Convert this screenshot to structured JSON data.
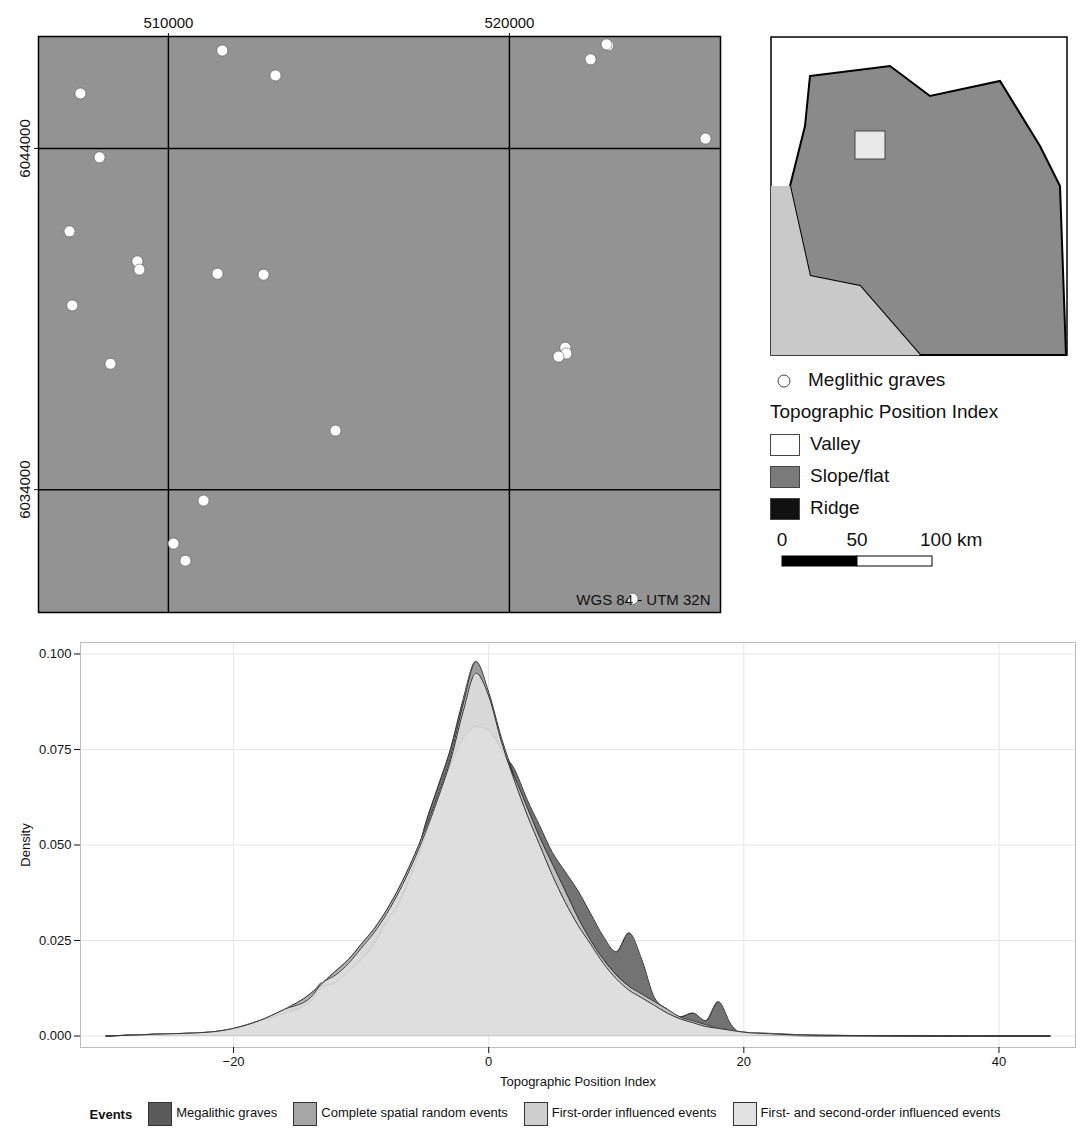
{
  "chart_data": [
    {
      "type": "scatter",
      "x": [
        511580,
        513140,
        507420,
        507980,
        507100,
        509090,
        509150,
        511440,
        512790,
        507180,
        508300,
        514900,
        511030,
        510150,
        510500,
        522900,
        522380,
        522850,
        525750,
        521640,
        521670,
        521440,
        523610
      ],
      "y": [
        6046870,
        6046140,
        6045610,
        6043740,
        6041570,
        6040690,
        6040450,
        6040330,
        6040300,
        6039400,
        6037690,
        6035730,
        6033680,
        6032420,
        6031920,
        6047020,
        6046610,
        6047050,
        6044290,
        6038160,
        6037990,
        6037900,
        6030800
      ],
      "xlim": [
        506190,
        526190
      ],
      "ylim": [
        6030400,
        6047280
      ],
      "xticks": [
        510000,
        520000
      ],
      "yticks": [
        6034000,
        6044000
      ],
      "grid": true,
      "color": "#ffffff",
      "marker": "circle",
      "annotations": [
        "WGS 84 - UTM 32N"
      ]
    },
    {
      "type": "area",
      "x_label": "Topographic Position Index",
      "y_label": "Density",
      "x": [
        -30,
        -26,
        -22,
        -20,
        -18,
        -16,
        -14,
        -13,
        -12,
        -11,
        -10,
        -9,
        -8,
        -7,
        -6,
        -5,
        -4,
        -3,
        -2,
        -1,
        0,
        1,
        2,
        3,
        4,
        5,
        6,
        7,
        8,
        9,
        10,
        11,
        12,
        13,
        14,
        15,
        16,
        17,
        18,
        19,
        20,
        22,
        24,
        26,
        30,
        36,
        44
      ],
      "series": [
        {
          "name": "Megalithic graves",
          "color": "#5a5a5a",
          "values": [
            0,
            0.0005,
            0.0008,
            0.0015,
            0.003,
            0.006,
            0.01,
            0.014,
            0.013,
            0.016,
            0.02,
            0.025,
            0.03,
            0.029,
            0.042,
            0.055,
            0.065,
            0.075,
            0.088,
            0.098,
            0.087,
            0.075,
            0.07,
            0.062,
            0.055,
            0.048,
            0.043,
            0.038,
            0.032,
            0.026,
            0.022,
            0.027,
            0.02,
            0.01,
            0.007,
            0.005,
            0.006,
            0.004,
            0.009,
            0.003,
            0.0005,
            0.0002,
            0.0001,
            0,
            0,
            0,
            0
          ]
        },
        {
          "name": "Complete spatial random events",
          "color": "#a6a6a6",
          "values": [
            0,
            0.0005,
            0.001,
            0.002,
            0.004,
            0.007,
            0.011,
            0.014,
            0.017,
            0.02,
            0.024,
            0.028,
            0.033,
            0.039,
            0.046,
            0.054,
            0.063,
            0.073,
            0.087,
            0.098,
            0.09,
            0.078,
            0.068,
            0.058,
            0.05,
            0.042,
            0.035,
            0.029,
            0.024,
            0.02,
            0.016,
            0.013,
            0.01,
            0.008,
            0.006,
            0.0045,
            0.0035,
            0.0025,
            0.002,
            0.0015,
            0.001,
            0.0006,
            0.0003,
            0.0002,
            0.0001,
            0,
            0
          ]
        },
        {
          "name": "First-order influenced events",
          "color": "#cfcfcf",
          "values": [
            0,
            0.0005,
            0.001,
            0.002,
            0.004,
            0.006,
            0.009,
            0.013,
            0.014,
            0.017,
            0.02,
            0.024,
            0.03,
            0.035,
            0.043,
            0.052,
            0.062,
            0.071,
            0.078,
            0.081,
            0.08,
            0.075,
            0.068,
            0.06,
            0.052,
            0.045,
            0.038,
            0.031,
            0.025,
            0.02,
            0.016,
            0.013,
            0.011,
            0.009,
            0.007,
            0.005,
            0.004,
            0.003,
            0.002,
            0.0015,
            0.001,
            0.0007,
            0.0004,
            0.0002,
            0.0001,
            5e-05,
            0
          ]
        },
        {
          "name": "First- and second-order influenced events",
          "color": "#e2e2e2",
          "values": [
            0,
            0.0005,
            0.001,
            0.002,
            0.004,
            0.007,
            0.01,
            0.014,
            0.016,
            0.019,
            0.023,
            0.027,
            0.032,
            0.038,
            0.045,
            0.053,
            0.062,
            0.072,
            0.085,
            0.095,
            0.089,
            0.077,
            0.067,
            0.058,
            0.05,
            0.042,
            0.035,
            0.029,
            0.024,
            0.019,
            0.015,
            0.012,
            0.01,
            0.008,
            0.006,
            0.0045,
            0.0035,
            0.0025,
            0.002,
            0.0015,
            0.001,
            0.0006,
            0.0003,
            0.0002,
            0.0001,
            0,
            0
          ]
        }
      ],
      "xlim": [
        -32,
        46
      ],
      "ylim": [
        -0.003,
        0.103
      ],
      "xticks": [
        {
          "value": -20,
          "label": "−20"
        },
        0,
        20,
        40
      ],
      "yticks": [
        {
          "value": 0,
          "label": "0.000"
        },
        {
          "value": 0.025,
          "label": "0.025"
        },
        {
          "value": 0.05,
          "label": "0.050"
        },
        {
          "value": 0.075,
          "label": "0.075"
        },
        {
          "value": 0.1,
          "label": "0.100"
        }
      ],
      "grid": true,
      "legend": "bottom",
      "legend_title": "Events"
    }
  ],
  "map_legend": {
    "points": "Meglithic graves",
    "title": "Topographic Position Index",
    "classes": [
      {
        "label": "Valley",
        "color": "#ffffff"
      },
      {
        "label": "Slope/flat",
        "color": "#7a7a7a"
      },
      {
        "label": "Ridge",
        "color": "#111111"
      }
    ],
    "scale_bar": [
      {
        "value": 0,
        "label": "0"
      },
      {
        "value": 50,
        "label": "50"
      },
      {
        "value": 100,
        "label": "100 km"
      }
    ]
  }
}
